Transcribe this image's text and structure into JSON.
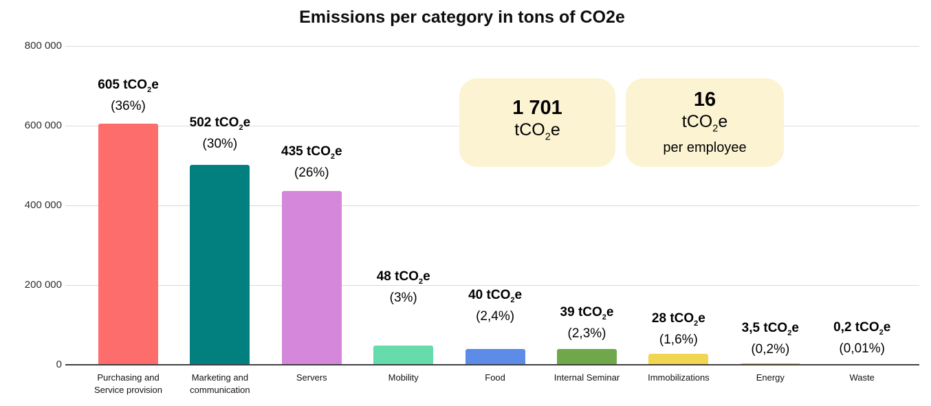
{
  "title": "Emissions per category in tons of CO2e",
  "chart_data": {
    "type": "bar",
    "title": "Emissions per category in tons of CO2e",
    "unit": "tCO2e",
    "xlabel": "",
    "ylabel": "",
    "ylim_kg": [
      0,
      800000
    ],
    "grid": true,
    "legend": false,
    "y_ticks": [
      "800 000",
      "600 000",
      "400 000",
      "200 000",
      "0"
    ],
    "categories": [
      "Purchasing and Service provision",
      "Marketing and communication",
      "Servers",
      "Mobility",
      "Food",
      "Internal Seminar",
      "Immobilizations",
      "Energy",
      "Waste"
    ],
    "values_tco2e": [
      605,
      502,
      435,
      48,
      40,
      39,
      28,
      3.5,
      0.2
    ],
    "bar_labels": [
      {
        "value": "605",
        "pct": "(36%)"
      },
      {
        "value": "502",
        "pct": "(30%)"
      },
      {
        "value": "435",
        "pct": "(26%)"
      },
      {
        "value": "48",
        "pct": "(3%)"
      },
      {
        "value": "40",
        "pct": "(2,4%)"
      },
      {
        "value": "39",
        "pct": "(2,3%)"
      },
      {
        "value": "28",
        "pct": "(1,6%)"
      },
      {
        "value": "3,5",
        "pct": "(0,2%)"
      },
      {
        "value": "0,2",
        "pct": "(0,01%)"
      }
    ],
    "bar_colors": [
      "#FC6D6B",
      "#01807F",
      "#D587DB",
      "#66DBAB",
      "#5C8BE8",
      "#6FA84B",
      "#F0D652",
      "#F0B616",
      "#F0B616"
    ]
  },
  "summary_cards": [
    {
      "value": "1 701",
      "unit": "tCO2e",
      "subtitle": ""
    },
    {
      "value": "16",
      "unit": "tCO2e",
      "subtitle": "per employee"
    }
  ],
  "colors": {
    "card_background": "#FBF3D2",
    "gridline": "#D9D9D9",
    "axis_line": "#3F3F3F",
    "text": "#000000"
  }
}
